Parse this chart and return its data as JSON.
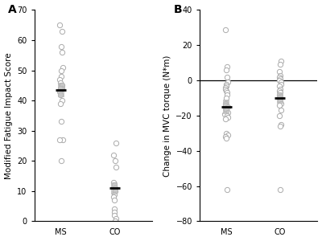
{
  "panel_A": {
    "label": "A",
    "ylabel": "Modified Fatigue Impact Score",
    "ylim": [
      0,
      70
    ],
    "yticks": [
      0,
      10,
      20,
      30,
      40,
      50,
      60,
      70
    ],
    "xtick_labels": [
      "MS",
      "CO"
    ],
    "MS_points": [
      65,
      63,
      58,
      56,
      51,
      50,
      48,
      47,
      46,
      45,
      45,
      44,
      44,
      43,
      42,
      40,
      39,
      33,
      27,
      27,
      20
    ],
    "MS_mean": 43.5,
    "MS_sem_low": 41.0,
    "MS_sem_high": 46.0,
    "CO_points": [
      26,
      22,
      20,
      18,
      13,
      12,
      11,
      10,
      9,
      8,
      7,
      4,
      3,
      2,
      1,
      0
    ],
    "CO_mean": 11,
    "CO_sem_low": 9.0,
    "CO_sem_high": 13.0
  },
  "panel_B": {
    "label": "B",
    "ylabel": "Change in MVC torque (N*m)",
    "ylim": [
      -80,
      40
    ],
    "yticks": [
      -80,
      -60,
      -40,
      -20,
      0,
      20,
      40
    ],
    "xtick_labels": [
      "MS",
      "CO"
    ],
    "MS_points": [
      29,
      8,
      6,
      2,
      -1,
      -2,
      -3,
      -4,
      -5,
      -6,
      -7,
      -8,
      -10,
      -13,
      -14,
      -15,
      -16,
      -17,
      -18,
      -19,
      -20,
      -21,
      -22,
      -30,
      -31,
      -32,
      -33,
      -62
    ],
    "MS_mean": -15,
    "MS_sem_low": -19,
    "MS_sem_high": -11,
    "CO_points": [
      11,
      9,
      5,
      3,
      2,
      1,
      0,
      -1,
      -2,
      -3,
      -5,
      -6,
      -7,
      -8,
      -9,
      -10,
      -12,
      -13,
      -14,
      -17,
      -20,
      -25,
      -26,
      -62
    ],
    "CO_mean": -10,
    "CO_sem_low": -13,
    "CO_sem_high": -7,
    "hline_y": 0
  },
  "circle_edge_color": "#aaaaaa",
  "mean_line_color": "#000000",
  "sem_box_color": "#bbbbbb",
  "background_color": "#ffffff",
  "marker_size": 4.5,
  "box_width": 0.12,
  "label_fontsize": 7.5,
  "tick_fontsize": 7
}
